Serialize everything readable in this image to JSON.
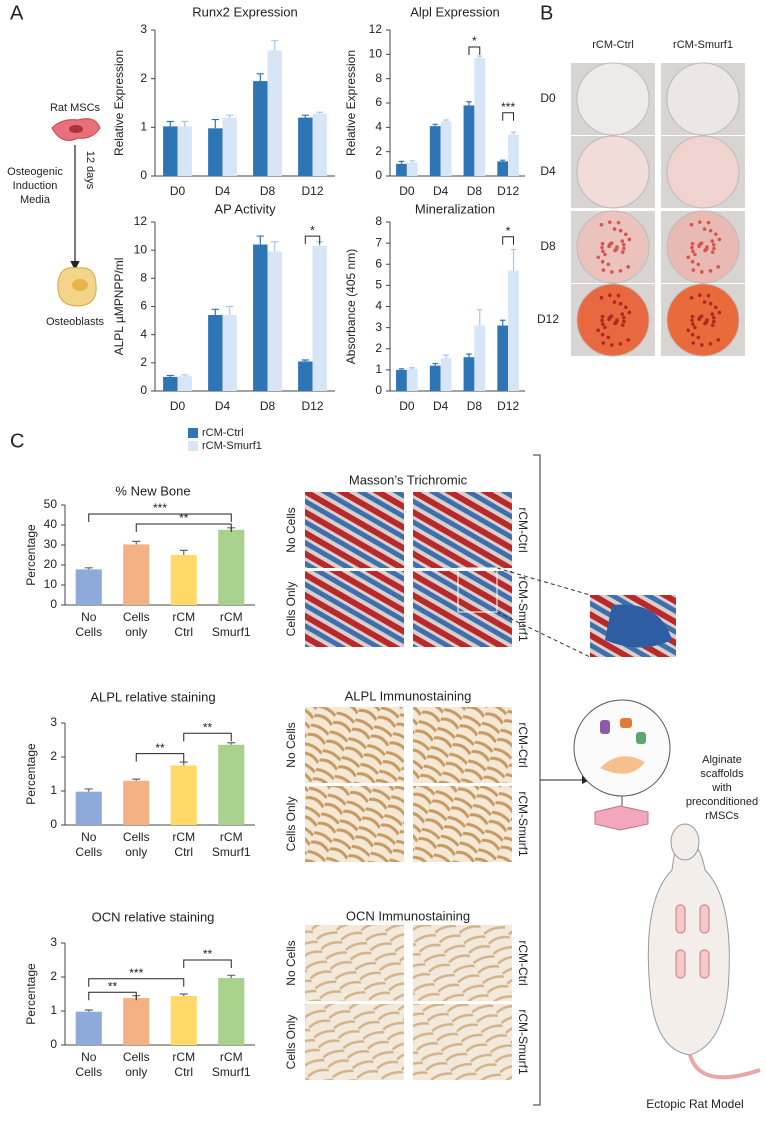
{
  "panels": {
    "a": "A",
    "b": "B",
    "c": "C"
  },
  "schematic": {
    "start": "Rat MSCs",
    "media": [
      "Osteogenic",
      "Induction",
      "Media"
    ],
    "duration": "12 days",
    "end": "Osteoblasts"
  },
  "staining_plate": {
    "columns": [
      "rCM-Ctrl",
      "rCM-Smurf1"
    ],
    "rows": [
      "D0",
      "D4",
      "D8",
      "D12"
    ]
  },
  "histology": {
    "sections": [
      {
        "title": "Masson’s Trichromic"
      },
      {
        "title": "ALPL Immunostaining"
      },
      {
        "title": "OCN Immunostaining"
      }
    ],
    "rows": [
      "No Cells",
      "Cells Only"
    ],
    "columns": [
      "rCM-Ctrl",
      "rCM-Smurf1"
    ]
  },
  "model": {
    "scaffold": [
      "Alginate",
      "scaffolds",
      "with",
      "preconditioned",
      "rMSCs"
    ],
    "title": "Ectopic Rat Model"
  },
  "chart_data": [
    {
      "type": "bar",
      "title": "Runx2 Expression",
      "y_label": "Relative Expression",
      "categories": [
        "D0",
        "D4",
        "D8",
        "D12"
      ],
      "series": [
        {
          "name": "rCM-Ctrl",
          "color": "#2e75b6",
          "values": [
            1.02,
            0.98,
            1.95,
            1.2
          ],
          "errors": [
            0.1,
            0.18,
            0.15,
            0.05
          ]
        },
        {
          "name": "rCM-Smurf1",
          "color": "#d6e6f6",
          "values": [
            1.02,
            1.2,
            2.58,
            1.28
          ],
          "errors": [
            0.1,
            0.05,
            0.2,
            0.03
          ]
        }
      ],
      "ylim": [
        0,
        3
      ],
      "yticks": [
        0,
        1,
        2,
        3
      ]
    },
    {
      "type": "bar",
      "title": "Alpl Expression",
      "y_label": "Relative Expression",
      "categories": [
        "D0",
        "D4",
        "D8",
        "D12"
      ],
      "series": [
        {
          "color": "#2e75b6",
          "values": [
            1.0,
            4.1,
            5.8,
            1.2
          ],
          "errors": [
            0.2,
            0.15,
            0.3,
            0.1
          ]
        },
        {
          "color": "#d6e6f6",
          "values": [
            1.1,
            4.5,
            9.7,
            3.4
          ],
          "errors": [
            0.15,
            0.1,
            0.15,
            0.2
          ]
        }
      ],
      "annotations": [
        {
          "text": "*",
          "at": 2,
          "y": 10.6
        },
        {
          "text": "***",
          "at": 3,
          "y": 5.2
        }
      ],
      "ylim": [
        0,
        12
      ],
      "yticks": [
        0,
        2,
        4,
        6,
        8,
        10,
        12
      ]
    },
    {
      "type": "bar",
      "title": "AP Activity",
      "y_label": "ALPL µMPNPP/ml",
      "categories": [
        "D0",
        "D4",
        "D8",
        "D12"
      ],
      "series": [
        {
          "color": "#2e75b6",
          "values": [
            1.0,
            5.4,
            10.4,
            2.1
          ],
          "errors": [
            0.1,
            0.4,
            0.6,
            0.1
          ]
        },
        {
          "color": "#d6e6f6",
          "values": [
            1.05,
            5.4,
            9.9,
            10.3
          ],
          "errors": [
            0.1,
            0.6,
            0.7,
            0.3
          ]
        }
      ],
      "annotations": [
        {
          "text": "*",
          "at": 3,
          "y": 11.0
        }
      ],
      "ylim": [
        0,
        12
      ],
      "yticks": [
        0,
        2,
        4,
        6,
        8,
        10,
        12
      ]
    },
    {
      "type": "bar",
      "title": "Mineralization",
      "y_label": "Absorbance (405 nm)",
      "categories": [
        "D0",
        "D4",
        "D8",
        "D12"
      ],
      "series": [
        {
          "color": "#2e75b6",
          "values": [
            1.0,
            1.2,
            1.6,
            3.1
          ],
          "errors": [
            0.05,
            0.1,
            0.15,
            0.25
          ]
        },
        {
          "color": "#d6e6f6",
          "values": [
            1.05,
            1.55,
            3.1,
            5.7
          ],
          "errors": [
            0.05,
            0.15,
            0.75,
            1.0
          ]
        }
      ],
      "annotations": [
        {
          "text": "*",
          "at": 3,
          "y": 7.3
        }
      ],
      "ylim": [
        0,
        8
      ],
      "yticks": [
        0,
        1,
        2,
        3,
        4,
        5,
        6,
        7,
        8
      ]
    },
    {
      "type": "bar",
      "title": "% New Bone",
      "y_label": "Percentage",
      "categories": [
        [
          "No",
          "Cells"
        ],
        [
          "Cells",
          "only"
        ],
        [
          "rCM",
          "Ctrl"
        ],
        [
          "rCM",
          "Smurf1"
        ]
      ],
      "values": [
        17.8,
        30.3,
        25.0,
        37.6
      ],
      "errors": [
        0.8,
        1.5,
        2.3,
        1.0
      ],
      "colors": [
        "#8eaadb",
        "#f4b183",
        "#ffd966",
        "#a9d18e"
      ],
      "annotations": [
        {
          "text": "***",
          "from": 0,
          "to": 3,
          "y": 45.5
        },
        {
          "text": "**",
          "from": 1,
          "to": 3,
          "y": 40.5
        }
      ],
      "ylim": [
        0,
        50
      ],
      "yticks": [
        0,
        10,
        20,
        30,
        40,
        50
      ]
    },
    {
      "type": "bar",
      "title": "ALPL relative staining",
      "y_label": "Percentage",
      "categories": [
        [
          "No",
          "Cells"
        ],
        [
          "Cells",
          "only"
        ],
        [
          "rCM",
          "Ctrl"
        ],
        [
          "rCM",
          "Smurf1"
        ]
      ],
      "values": [
        0.98,
        1.3,
        1.75,
        2.36
      ],
      "errors": [
        0.08,
        0.05,
        0.1,
        0.06
      ],
      "colors": [
        "#8eaadb",
        "#f4b183",
        "#ffd966",
        "#a9d18e"
      ],
      "annotations": [
        {
          "text": "**",
          "from": 1,
          "to": 2,
          "y": 2.1
        },
        {
          "text": "**",
          "from": 2,
          "to": 3,
          "y": 2.7
        }
      ],
      "ylim": [
        0,
        3
      ],
      "yticks": [
        0,
        1,
        2,
        3
      ]
    },
    {
      "type": "bar",
      "title": "OCN relative staining",
      "y_label": "Percentage",
      "categories": [
        [
          "No",
          "Cells"
        ],
        [
          "Cells",
          "only"
        ],
        [
          "rCM",
          "Ctrl"
        ],
        [
          "rCM",
          "Smurf1"
        ]
      ],
      "values": [
        0.98,
        1.38,
        1.44,
        1.97
      ],
      "errors": [
        0.05,
        0.07,
        0.06,
        0.08
      ],
      "colors": [
        "#8eaadb",
        "#f4b183",
        "#ffd966",
        "#a9d18e"
      ],
      "annotations": [
        {
          "text": "**",
          "from": 0,
          "to": 1,
          "y": 1.55
        },
        {
          "text": "***",
          "from": 0,
          "to": 2,
          "y": 1.95
        },
        {
          "text": "**",
          "from": 2,
          "to": 3,
          "y": 2.5
        }
      ],
      "ylim": [
        0,
        3
      ],
      "yticks": [
        0,
        1,
        2,
        3
      ]
    }
  ]
}
